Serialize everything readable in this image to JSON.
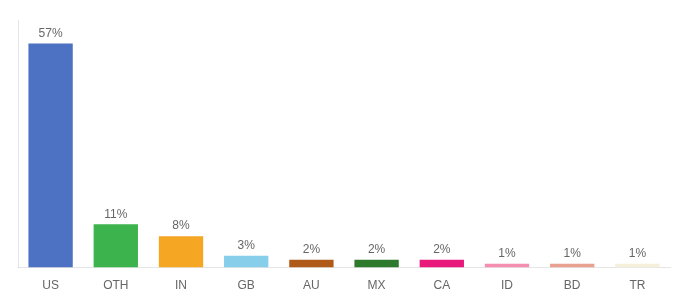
{
  "chart_data": {
    "type": "bar",
    "categories": [
      "US",
      "OTH",
      "IN",
      "GB",
      "AU",
      "MX",
      "CA",
      "ID",
      "BD",
      "TR"
    ],
    "values": [
      57,
      11,
      8,
      3,
      2,
      2,
      2,
      1,
      1,
      1
    ],
    "value_labels": [
      "57%",
      "11%",
      "8%",
      "3%",
      "2%",
      "2%",
      "2%",
      "1%",
      "1%",
      "1%"
    ],
    "colors": [
      "#4d72c4",
      "#3db34d",
      "#f5a623",
      "#87ceeb",
      "#b05a1a",
      "#2d7a2d",
      "#e8197a",
      "#f48fb1",
      "#e8a090",
      "#f5f0dc"
    ],
    "ylim": [
      0,
      63
    ],
    "data_labels": true,
    "tick_labels": "x",
    "grid": false
  }
}
